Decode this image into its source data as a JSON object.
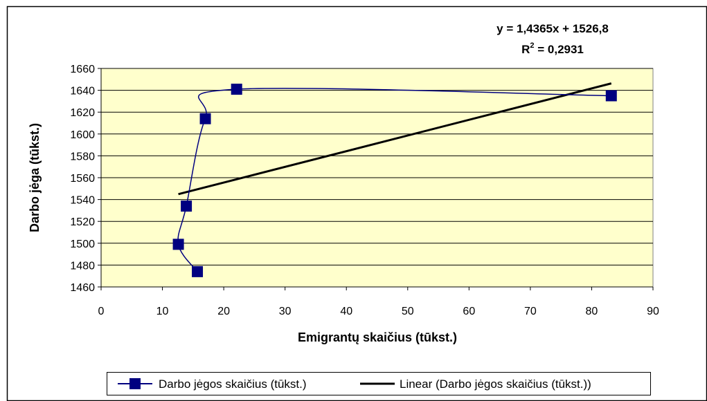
{
  "chart_data": {
    "type": "scatter",
    "xlabel": "Emigrantų skaičius (tūkst.)",
    "ylabel": "Darbo jėga (tūkst.)",
    "xlim": [
      0,
      90
    ],
    "ylim": [
      1460,
      1660
    ],
    "xticks": [
      0,
      10,
      20,
      30,
      40,
      50,
      60,
      70,
      80,
      90
    ],
    "yticks": [
      1460,
      1480,
      1500,
      1520,
      1540,
      1560,
      1580,
      1600,
      1620,
      1640,
      1660
    ],
    "grid": "horizontal",
    "plot_background": "#ffffcc",
    "legend_position": "bottom",
    "series": [
      {
        "name": "Darbo jėgos skaičius (tūkst.)",
        "color": "#000080",
        "marker": "square",
        "line": "smooth",
        "points": [
          {
            "x": 15.7,
            "y": 1474
          },
          {
            "x": 12.6,
            "y": 1499
          },
          {
            "x": 13.9,
            "y": 1534
          },
          {
            "x": 17.0,
            "y": 1614
          },
          {
            "x": 22.1,
            "y": 1641
          },
          {
            "x": 83.2,
            "y": 1635
          }
        ]
      },
      {
        "name": "Linear (Darbo jėgos skaičius (tūkst.))",
        "color": "#000000",
        "type": "trendline",
        "slope": 1.4365,
        "intercept": 1526.8,
        "x_range": [
          12.6,
          83.2
        ]
      }
    ],
    "annotations": {
      "equation": "y = 1,4365x + 1526,8",
      "r2_label": "R",
      "r2_sup": "2",
      "r2_value": " = 0,2931"
    }
  }
}
